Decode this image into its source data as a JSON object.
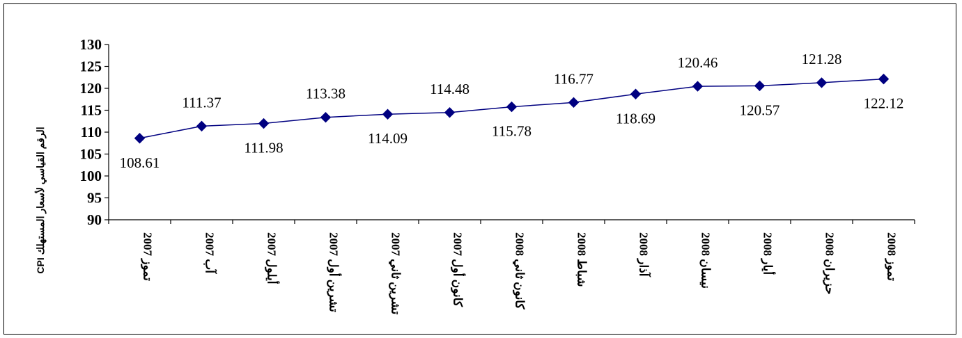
{
  "chart_data": {
    "type": "line",
    "title": "",
    "xlabel": "",
    "ylabel": "CPI الرقم القياسي لأسعار المستهلك",
    "ylim": [
      90,
      130
    ],
    "ytick_step": 5,
    "grid": false,
    "legend": "none",
    "categories": [
      "تموز 2007",
      "آب 2007",
      "أيلول 2007",
      "تشرين أول 2007",
      "تشرين ثاني 2007",
      "كانون أول 2007",
      "كانون ثاني 2008",
      "شباط 2008",
      "آذار 2008",
      "نيسان 2008",
      "أيار 2008",
      "حزيران 2008",
      "تموز 2008"
    ],
    "series": [
      {
        "values": [
          108.61,
          111.37,
          111.98,
          113.38,
          114.09,
          114.48,
          115.78,
          116.77,
          118.69,
          120.46,
          120.57,
          121.28,
          122.12
        ],
        "data_labels": [
          "108.61",
          "111.37",
          "111.98",
          "113.38",
          "114.09",
          "114.48",
          "115.78",
          "116.77",
          "118.69",
          "120.46",
          "120.57",
          "121.28",
          "122.12"
        ],
        "label_positions": [
          "below",
          "above",
          "below",
          "above",
          "below",
          "above",
          "below",
          "above",
          "below",
          "above",
          "below",
          "above",
          "below"
        ],
        "color": "#000080",
        "marker": "diamond"
      }
    ]
  }
}
